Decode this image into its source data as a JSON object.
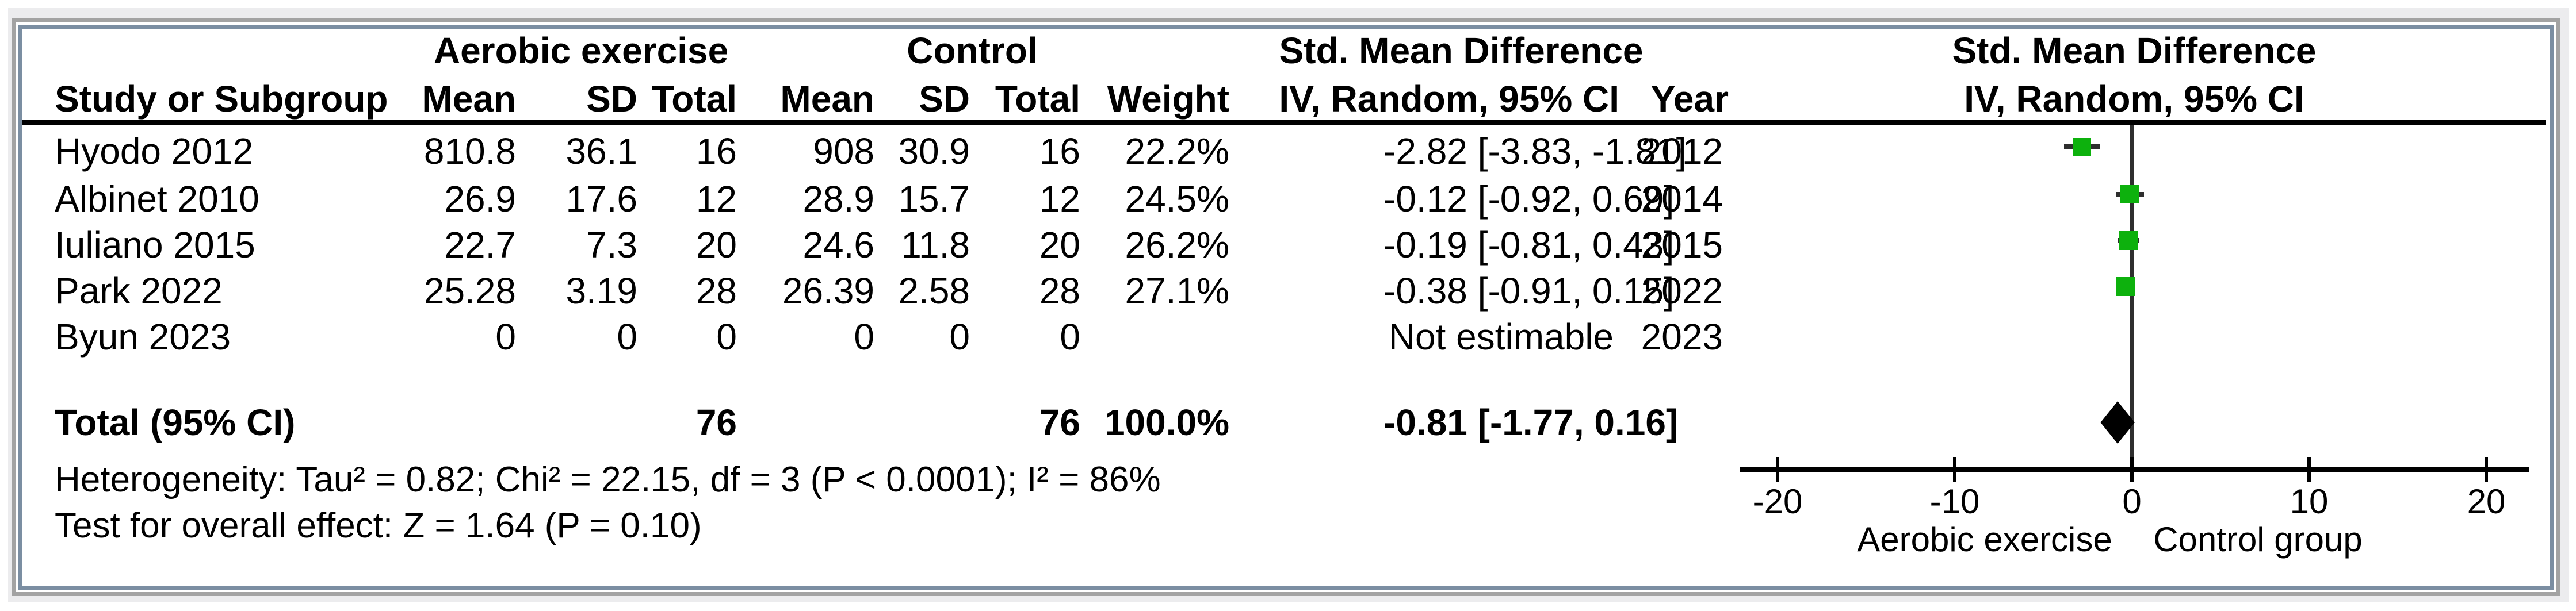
{
  "frame": {
    "outer_band_color": "#ececee",
    "outer_border_color": "#a3a3a3",
    "inner_border_color": "#7b8ea2",
    "background": "#ffffff"
  },
  "colors": {
    "marker_green": "#0db10d",
    "ci_line": "#2e2e2e",
    "diamond": "#000000",
    "text": "#000000"
  },
  "table": {
    "group_headers": {
      "experimental": "Aerobic exercise",
      "control": "Control",
      "effect": "Std. Mean Difference",
      "plot": "Std. Mean Difference"
    },
    "column_headers": {
      "study": "Study or Subgroup",
      "mean": "Mean",
      "sd": "SD",
      "total": "Total",
      "weight": "Weight",
      "effect_ci": "IV, Random, 95% CI",
      "year": "Year",
      "plot_ci": "IV, Random, 95% CI"
    },
    "rows": [
      {
        "study": "Hyodo 2012",
        "mean_e": "810.8",
        "sd_e": "36.1",
        "total_e": "16",
        "mean_c": "908",
        "sd_c": "30.9",
        "total_c": "16",
        "weight": "22.2%",
        "ci": "-2.82 [-3.83, -1.81]",
        "year": "2012"
      },
      {
        "study": "Albinet 2010",
        "mean_e": "26.9",
        "sd_e": "17.6",
        "total_e": "12",
        "mean_c": "28.9",
        "sd_c": "15.7",
        "total_c": "12",
        "weight": "24.5%",
        "ci": "-0.12 [-0.92, 0.69]",
        "year": "2014"
      },
      {
        "study": "Iuliano 2015",
        "mean_e": "22.7",
        "sd_e": "7.3",
        "total_e": "20",
        "mean_c": "24.6",
        "sd_c": "11.8",
        "total_c": "20",
        "weight": "26.2%",
        "ci": "-0.19 [-0.81, 0.43]",
        "year": "2015"
      },
      {
        "study": "Park 2022",
        "mean_e": "25.28",
        "sd_e": "3.19",
        "total_e": "28",
        "mean_c": "26.39",
        "sd_c": "2.58",
        "total_c": "28",
        "weight": "27.1%",
        "ci": "-0.38 [-0.91, 0.15]",
        "year": "2022"
      },
      {
        "study": "Byun 2023",
        "mean_e": "0",
        "sd_e": "0",
        "total_e": "0",
        "mean_c": "0",
        "sd_c": "0",
        "total_c": "0",
        "weight": "",
        "ci": "Not estimable",
        "year": "2023"
      }
    ],
    "total_row": {
      "study": "Total (95% CI)",
      "total_e": "76",
      "total_c": "76",
      "weight": "100.0%",
      "ci": "-0.81 [-1.77, 0.16]"
    },
    "footer": {
      "heterogeneity": "Heterogeneity: Tau² = 0.82; Chi² = 22.15, df = 3 (P < 0.0001); I² = 86%",
      "overall_effect": "Test for overall effect: Z = 1.64 (P = 0.10)"
    }
  },
  "chart_data": {
    "type": "forest",
    "effect_measure": "Std. Mean Difference, IV, Random, 95% CI",
    "x_axis": {
      "min": -20,
      "max": 20,
      "ticks": [
        -20,
        -10,
        0,
        10,
        20
      ],
      "left_label": "Aerobic exercise",
      "right_label": "Control group"
    },
    "studies": [
      {
        "name": "Hyodo 2012",
        "year": "2012",
        "smd": -2.82,
        "ci_low": -3.83,
        "ci_high": -1.81,
        "weight_pct": 22.2,
        "estimable": true
      },
      {
        "name": "Albinet 2010",
        "year": "2014",
        "smd": -0.12,
        "ci_low": -0.92,
        "ci_high": 0.69,
        "weight_pct": 24.5,
        "estimable": true
      },
      {
        "name": "Iuliano 2015",
        "year": "2015",
        "smd": -0.19,
        "ci_low": -0.81,
        "ci_high": 0.43,
        "weight_pct": 26.2,
        "estimable": true
      },
      {
        "name": "Park 2022",
        "year": "2022",
        "smd": -0.38,
        "ci_low": -0.91,
        "ci_high": 0.15,
        "weight_pct": 27.1,
        "estimable": true
      },
      {
        "name": "Byun 2023",
        "year": "2023",
        "smd": null,
        "ci_low": null,
        "ci_high": null,
        "weight_pct": null,
        "estimable": false
      }
    ],
    "overall": {
      "label": "Total (95% CI)",
      "smd": -0.81,
      "ci_low": -1.77,
      "ci_high": 0.16,
      "total_experimental": 76,
      "total_control": 76,
      "weight_pct": 100.0
    },
    "heterogeneity": {
      "tau2": 0.82,
      "chi2": 22.15,
      "df": 3,
      "p": "< 0.0001",
      "i2_pct": 86
    },
    "overall_effect_test": {
      "z": 1.64,
      "p": 0.1
    }
  }
}
